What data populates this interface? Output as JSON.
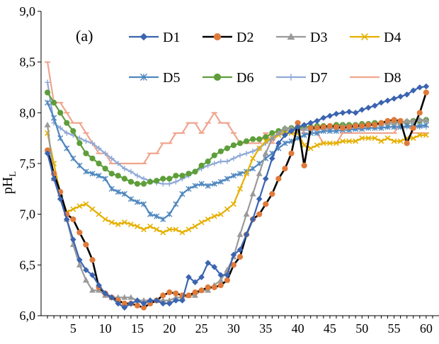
{
  "chart_data": {
    "type": "line",
    "panel_label": "(a)",
    "title": "",
    "xlabel": "",
    "ylabel": "pH",
    "ylabel_subscript": "L",
    "xlim": [
      0,
      62
    ],
    "ylim": [
      6.0,
      9.0
    ],
    "x_ticks": [
      5,
      10,
      15,
      20,
      25,
      30,
      35,
      40,
      45,
      50,
      55,
      60
    ],
    "y_ticks": [
      "6,0",
      "6,5",
      "7,0",
      "7,5",
      "8,0",
      "8,5",
      "9,0"
    ],
    "grid": false,
    "legend_position": "top",
    "series": [
      {
        "name": "D1",
        "color": "#3B64B0",
        "marker": "diamond",
        "line_width": 2.2,
        "values": [
          7.6,
          7.35,
          7.15,
          6.95,
          6.75,
          6.55,
          6.45,
          6.4,
          6.3,
          6.22,
          6.18,
          6.12,
          6.08,
          6.12,
          6.15,
          6.12,
          6.15,
          6.15,
          6.12,
          6.12,
          6.15,
          6.15,
          6.38,
          6.33,
          6.38,
          6.52,
          6.48,
          6.4,
          6.4,
          6.6,
          6.65,
          6.8,
          6.95,
          7.15,
          7.35,
          7.55,
          7.7,
          7.78,
          7.82,
          7.86,
          7.88,
          7.9,
          7.92,
          7.95,
          7.97,
          7.99,
          8.0,
          8.01,
          8.0,
          8.03,
          8.05,
          8.07,
          8.1,
          8.12,
          8.14,
          8.16,
          8.18,
          8.22,
          8.25,
          8.26
        ]
      },
      {
        "name": "D2",
        "color": "#000000",
        "marker": "circle",
        "marker_color": "#E07A3A",
        "line_width": 2.6,
        "values": [
          7.63,
          7.4,
          7.22,
          7.0,
          6.95,
          6.82,
          6.7,
          6.55,
          6.28,
          6.22,
          6.18,
          6.15,
          6.12,
          6.12,
          6.1,
          6.08,
          6.12,
          6.15,
          6.2,
          6.23,
          6.22,
          6.2,
          6.2,
          6.23,
          6.25,
          6.28,
          6.28,
          6.3,
          6.35,
          6.5,
          6.58,
          6.8,
          6.95,
          7.0,
          7.1,
          7.2,
          7.35,
          7.45,
          7.6,
          7.9,
          7.48,
          7.85,
          7.85,
          7.86,
          7.87,
          7.86,
          7.85,
          7.86,
          7.87,
          7.87,
          7.88,
          7.88,
          7.9,
          7.92,
          7.93,
          7.92,
          7.7,
          7.85,
          8.0,
          8.2
        ]
      },
      {
        "name": "D3",
        "color": "#9A9A9A",
        "marker": "triangle",
        "line_width": 2.2,
        "values": [
          7.88,
          7.35,
          7.2,
          6.95,
          6.7,
          6.5,
          6.35,
          6.25,
          6.25,
          6.2,
          6.18,
          6.18,
          6.18,
          6.18,
          6.15,
          6.15,
          6.15,
          6.15,
          6.15,
          6.15,
          6.18,
          6.18,
          6.2,
          6.2,
          6.25,
          6.25,
          6.3,
          6.35,
          6.45,
          6.58,
          6.8,
          7.0,
          7.2,
          7.4,
          7.6,
          7.75,
          7.8,
          7.85,
          7.85,
          7.82,
          7.85,
          7.85,
          7.86,
          7.85,
          7.86,
          7.86,
          7.87,
          7.87,
          7.88,
          7.88,
          7.88,
          7.89,
          7.89,
          7.9,
          7.9,
          7.9,
          7.92,
          7.92,
          7.93,
          7.93
        ]
      },
      {
        "name": "D4",
        "color": "#E5B000",
        "marker": "x",
        "line_width": 2.2,
        "values": [
          7.8,
          7.5,
          7.2,
          7.02,
          7.05,
          7.08,
          7.1,
          7.05,
          7.0,
          6.95,
          6.92,
          6.9,
          6.92,
          6.9,
          6.88,
          6.85,
          6.88,
          6.85,
          6.82,
          6.85,
          6.85,
          6.82,
          6.85,
          6.88,
          6.92,
          6.95,
          6.98,
          7.0,
          7.05,
          7.1,
          7.25,
          7.4,
          7.55,
          7.65,
          7.72,
          7.75,
          7.78,
          7.8,
          7.8,
          7.8,
          7.68,
          7.65,
          7.68,
          7.7,
          7.7,
          7.7,
          7.72,
          7.72,
          7.72,
          7.75,
          7.75,
          7.75,
          7.72,
          7.75,
          7.72,
          7.72,
          7.75,
          7.75,
          7.78,
          7.78
        ]
      },
      {
        "name": "D5",
        "color": "#4F87BF",
        "marker": "star",
        "line_width": 2.2,
        "values": [
          8.1,
          7.95,
          7.75,
          7.65,
          7.55,
          7.48,
          7.42,
          7.4,
          7.38,
          7.35,
          7.25,
          7.22,
          7.2,
          7.15,
          7.12,
          7.1,
          7.0,
          6.98,
          6.95,
          7.0,
          7.1,
          7.2,
          7.25,
          7.28,
          7.3,
          7.28,
          7.3,
          7.32,
          7.35,
          7.38,
          7.4,
          7.42,
          7.45,
          7.5,
          7.55,
          7.6,
          7.65,
          7.7,
          7.72,
          7.75,
          7.78,
          7.8,
          7.8,
          7.82,
          7.82,
          7.82,
          7.83,
          7.83,
          7.84,
          7.84,
          7.85,
          7.85,
          7.85,
          7.86,
          7.86,
          7.86,
          7.87,
          7.87,
          7.87,
          7.88
        ]
      },
      {
        "name": "D6",
        "color": "#5E9E3A",
        "marker": "circle",
        "line_width": 2.2,
        "values": [
          8.2,
          8.1,
          8.0,
          7.9,
          7.82,
          7.7,
          7.6,
          7.55,
          7.5,
          7.45,
          7.4,
          7.38,
          7.35,
          7.32,
          7.3,
          7.3,
          7.32,
          7.33,
          7.35,
          7.35,
          7.38,
          7.38,
          7.4,
          7.42,
          7.48,
          7.52,
          7.58,
          7.62,
          7.65,
          7.68,
          7.7,
          7.72,
          7.74,
          7.74,
          7.76,
          7.8,
          7.82,
          7.84,
          7.85,
          7.85,
          7.86,
          7.86,
          7.87,
          7.87,
          7.87,
          7.88,
          7.88,
          7.88,
          7.88,
          7.89,
          7.89,
          7.9,
          7.9,
          7.9,
          7.9,
          7.91,
          7.91,
          7.92,
          7.92,
          7.93
        ]
      },
      {
        "name": "D7",
        "color": "#8FA9D6",
        "marker": "plus",
        "line_width": 2.2,
        "values": [
          8.3,
          7.9,
          7.85,
          7.8,
          7.78,
          7.75,
          7.72,
          7.7,
          7.65,
          7.6,
          7.55,
          7.5,
          7.45,
          7.42,
          7.38,
          7.35,
          7.33,
          7.31,
          7.3,
          7.3,
          7.32,
          7.35,
          7.38,
          7.42,
          7.45,
          7.48,
          7.5,
          7.52,
          7.52,
          7.55,
          7.58,
          7.6,
          7.62,
          7.65,
          7.7,
          7.75,
          7.8,
          7.82,
          7.82,
          7.83,
          7.83,
          7.83,
          7.84,
          7.84,
          7.84,
          7.85,
          7.85,
          7.85,
          7.85,
          7.85,
          7.85,
          7.85,
          7.85,
          7.86,
          7.86,
          7.86,
          7.86,
          7.86,
          7.86,
          7.86
        ]
      },
      {
        "name": "D8",
        "color": "#F0A58E",
        "marker": "dash",
        "line_width": 2.2,
        "values": [
          8.5,
          8.1,
          8.1,
          8.0,
          7.9,
          7.9,
          7.8,
          7.7,
          7.6,
          7.6,
          7.5,
          7.5,
          7.5,
          7.5,
          7.5,
          7.5,
          7.6,
          7.6,
          7.7,
          7.7,
          7.8,
          7.8,
          7.9,
          7.9,
          7.8,
          7.9,
          8.0,
          7.9,
          7.9,
          7.8,
          7.7,
          7.7,
          7.7,
          7.7,
          7.8,
          7.7,
          7.8,
          7.8,
          7.8,
          7.9,
          7.8,
          7.8,
          7.8,
          7.7,
          7.7,
          7.7,
          7.8,
          7.8,
          7.8,
          7.8,
          7.8,
          7.8,
          7.8,
          7.8,
          7.8,
          7.9,
          7.9,
          7.8,
          7.8,
          7.8
        ]
      }
    ]
  }
}
